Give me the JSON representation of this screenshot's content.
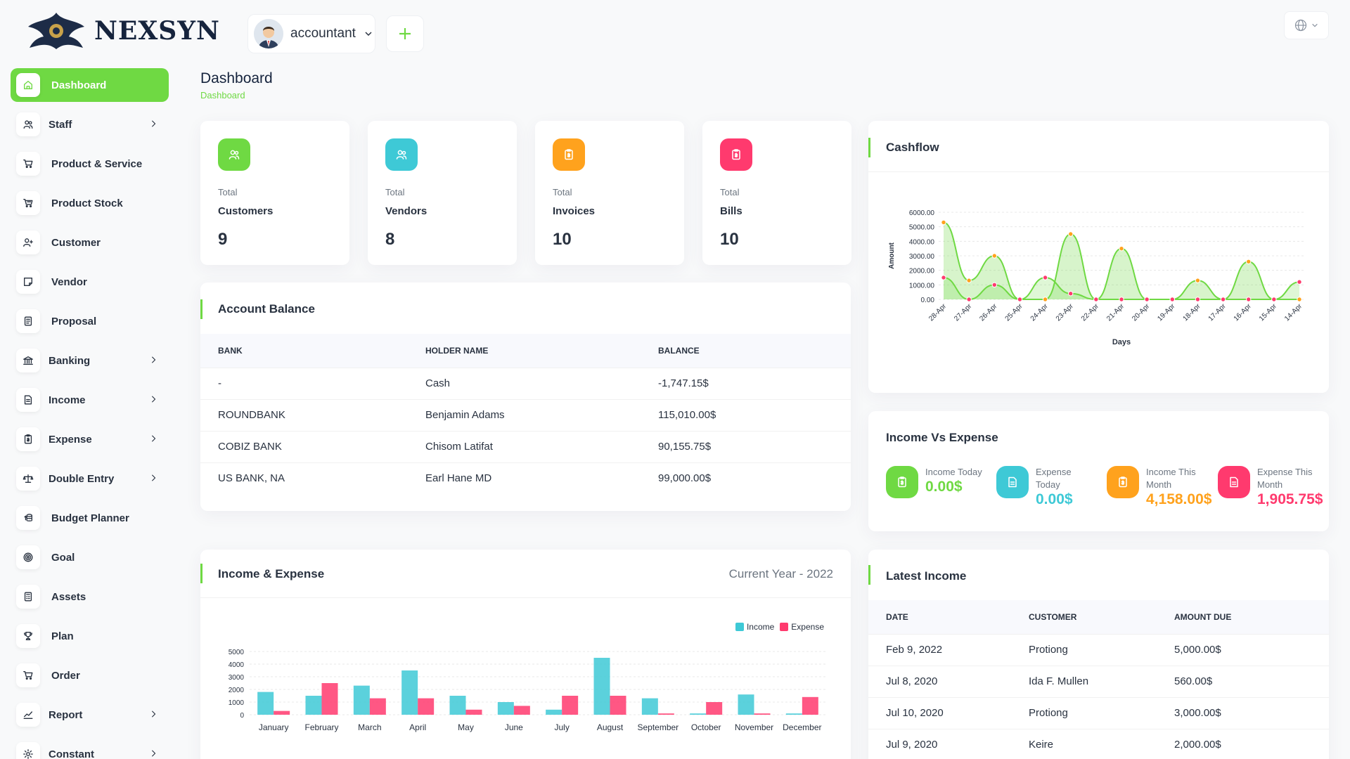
{
  "brand": {
    "name": "NEXSYN"
  },
  "header": {
    "user_name": "accountant",
    "add_icon": "plus-icon",
    "lang_icon": "globe-icon"
  },
  "sidebar": {
    "items": [
      {
        "label": "Dashboard",
        "icon": "home-icon",
        "active": true,
        "has_submenu": false
      },
      {
        "label": "Staff",
        "icon": "users-icon",
        "has_submenu": true
      },
      {
        "label": "Product & Service",
        "icon": "cart-icon",
        "has_submenu": false
      },
      {
        "label": "Product Stock",
        "icon": "shopping-cart-icon",
        "has_submenu": false
      },
      {
        "label": "Customer",
        "icon": "user-plus-icon",
        "has_submenu": false
      },
      {
        "label": "Vendor",
        "icon": "note-icon",
        "has_submenu": false
      },
      {
        "label": "Proposal",
        "icon": "document-icon",
        "has_submenu": false
      },
      {
        "label": "Banking",
        "icon": "bank-icon",
        "has_submenu": true
      },
      {
        "label": "Income",
        "icon": "file-invoice-icon",
        "has_submenu": true
      },
      {
        "label": "Expense",
        "icon": "receipt-icon",
        "has_submenu": true
      },
      {
        "label": "Double Entry",
        "icon": "scale-icon",
        "has_submenu": true
      },
      {
        "label": "Budget Planner",
        "icon": "coins-icon",
        "has_submenu": false
      },
      {
        "label": "Goal",
        "icon": "target-icon",
        "has_submenu": false
      },
      {
        "label": "Assets",
        "icon": "calculator-icon",
        "has_submenu": false
      },
      {
        "label": "Plan",
        "icon": "trophy-icon",
        "has_submenu": false
      },
      {
        "label": "Order",
        "icon": "cart-icon",
        "has_submenu": false
      },
      {
        "label": "Report",
        "icon": "chart-line-icon",
        "has_submenu": true
      },
      {
        "label": "Constant",
        "icon": "settings-icon",
        "has_submenu": true
      }
    ]
  },
  "page": {
    "title": "Dashboard",
    "breadcrumb": "Dashboard"
  },
  "stats": [
    {
      "small": "Total",
      "label": "Customers",
      "value": "9",
      "color": "#6fd943",
      "icon": "users-icon"
    },
    {
      "small": "Total",
      "label": "Vendors",
      "value": "8",
      "color": "#3ec9d6",
      "icon": "users-icon"
    },
    {
      "small": "Total",
      "label": "Invoices",
      "value": "10",
      "color": "#ffa21d",
      "icon": "receipt-icon"
    },
    {
      "small": "Total",
      "label": "Bills",
      "value": "10",
      "color": "#ff3a6e",
      "icon": "receipt-icon"
    }
  ],
  "account_balance": {
    "title": "Account Balance",
    "columns": [
      "BANK",
      "HOLDER NAME",
      "BALANCE"
    ],
    "rows": [
      [
        "-",
        "Cash",
        "-1,747.15$"
      ],
      [
        "ROUNDBANK",
        "Benjamin Adams",
        "115,010.00$"
      ],
      [
        "COBIZ BANK",
        "Chisom Latifat",
        "90,155.75$"
      ],
      [
        "US BANK, NA",
        "Earl Hane MD",
        "99,000.00$"
      ]
    ]
  },
  "cashflow": {
    "title": "Cashflow"
  },
  "income_vs_expense": {
    "title": "Income Vs Expense",
    "items": [
      {
        "label1": "Income Today",
        "label2": "",
        "value": "0.00$",
        "color": "#6fd943",
        "icon": "receipt-icon"
      },
      {
        "label1": "Expense",
        "label2": "Today",
        "value": "0.00$",
        "color": "#3ec9d6",
        "icon": "file-icon"
      },
      {
        "label1": "Income This",
        "label2": "Month",
        "value": "4,158.00$",
        "color": "#ffa21d",
        "icon": "receipt-icon"
      },
      {
        "label1": "Expense This",
        "label2": "Month",
        "value": "1,905.75$",
        "color": "#ff3a6e",
        "icon": "file-icon"
      }
    ]
  },
  "income_expense": {
    "title": "Income & Expense",
    "year_label": "Current Year - 2022"
  },
  "latest_income": {
    "title": "Latest Income",
    "columns": [
      "DATE",
      "CUSTOMER",
      "AMOUNT DUE"
    ],
    "rows": [
      [
        "Feb 9, 2022",
        "Protiong",
        "5,000.00$"
      ],
      [
        "Jul 8, 2020",
        "Ida F. Mullen",
        "560.00$"
      ],
      [
        "Jul 10, 2020",
        "Protiong",
        "3,000.00$"
      ],
      [
        "Jul 9, 2020",
        "Keire",
        "2,000.00$"
      ]
    ]
  },
  "chart_data": [
    {
      "type": "area",
      "xlabel": "Days",
      "ylabel": "Amount",
      "ylim": [
        0,
        6000
      ],
      "y_ticks": [
        "0.00",
        "1000.00",
        "2000.00",
        "3000.00",
        "4000.00",
        "5000.00",
        "6000.00"
      ],
      "categories": [
        "28-Apr",
        "27-Apr",
        "26-Apr",
        "25-Apr",
        "24-Apr",
        "23-Apr",
        "22-Apr",
        "21-Apr",
        "20-Apr",
        "19-Apr",
        "18-Apr",
        "17-Apr",
        "16-Apr",
        "15-Apr",
        "14-Apr"
      ],
      "series": [
        {
          "values": [
            5300,
            1300,
            3000,
            0,
            0,
            4500,
            0,
            3500,
            0,
            0,
            1300,
            0,
            2600,
            0,
            0
          ],
          "color": "#ffa21d"
        },
        {
          "values": [
            1500,
            0,
            1000,
            0,
            1500,
            400,
            0,
            0,
            0,
            0,
            0,
            0,
            0,
            0,
            1200
          ],
          "color": "#ff3a6e"
        }
      ],
      "grid": true,
      "legend": "none"
    },
    {
      "type": "bar",
      "categories": [
        "January",
        "February",
        "March",
        "April",
        "May",
        "June",
        "July",
        "August",
        "September",
        "October",
        "November",
        "December"
      ],
      "series": [
        {
          "name": "Income",
          "values": [
            1800,
            1500,
            2300,
            3500,
            1500,
            1000,
            400,
            4500,
            1300,
            100,
            1600,
            100
          ],
          "color": "#3ec9d6"
        },
        {
          "name": "Expense",
          "values": [
            300,
            2500,
            1300,
            1300,
            400,
            700,
            1500,
            1500,
            100,
            1000,
            100,
            1400
          ],
          "color": "#ff3a6e"
        }
      ],
      "ylim": [
        0,
        5000
      ],
      "y_ticks": [
        "0",
        "1000",
        "2000",
        "3000",
        "4000",
        "5000"
      ],
      "grid": true,
      "legend": "top-right"
    }
  ]
}
